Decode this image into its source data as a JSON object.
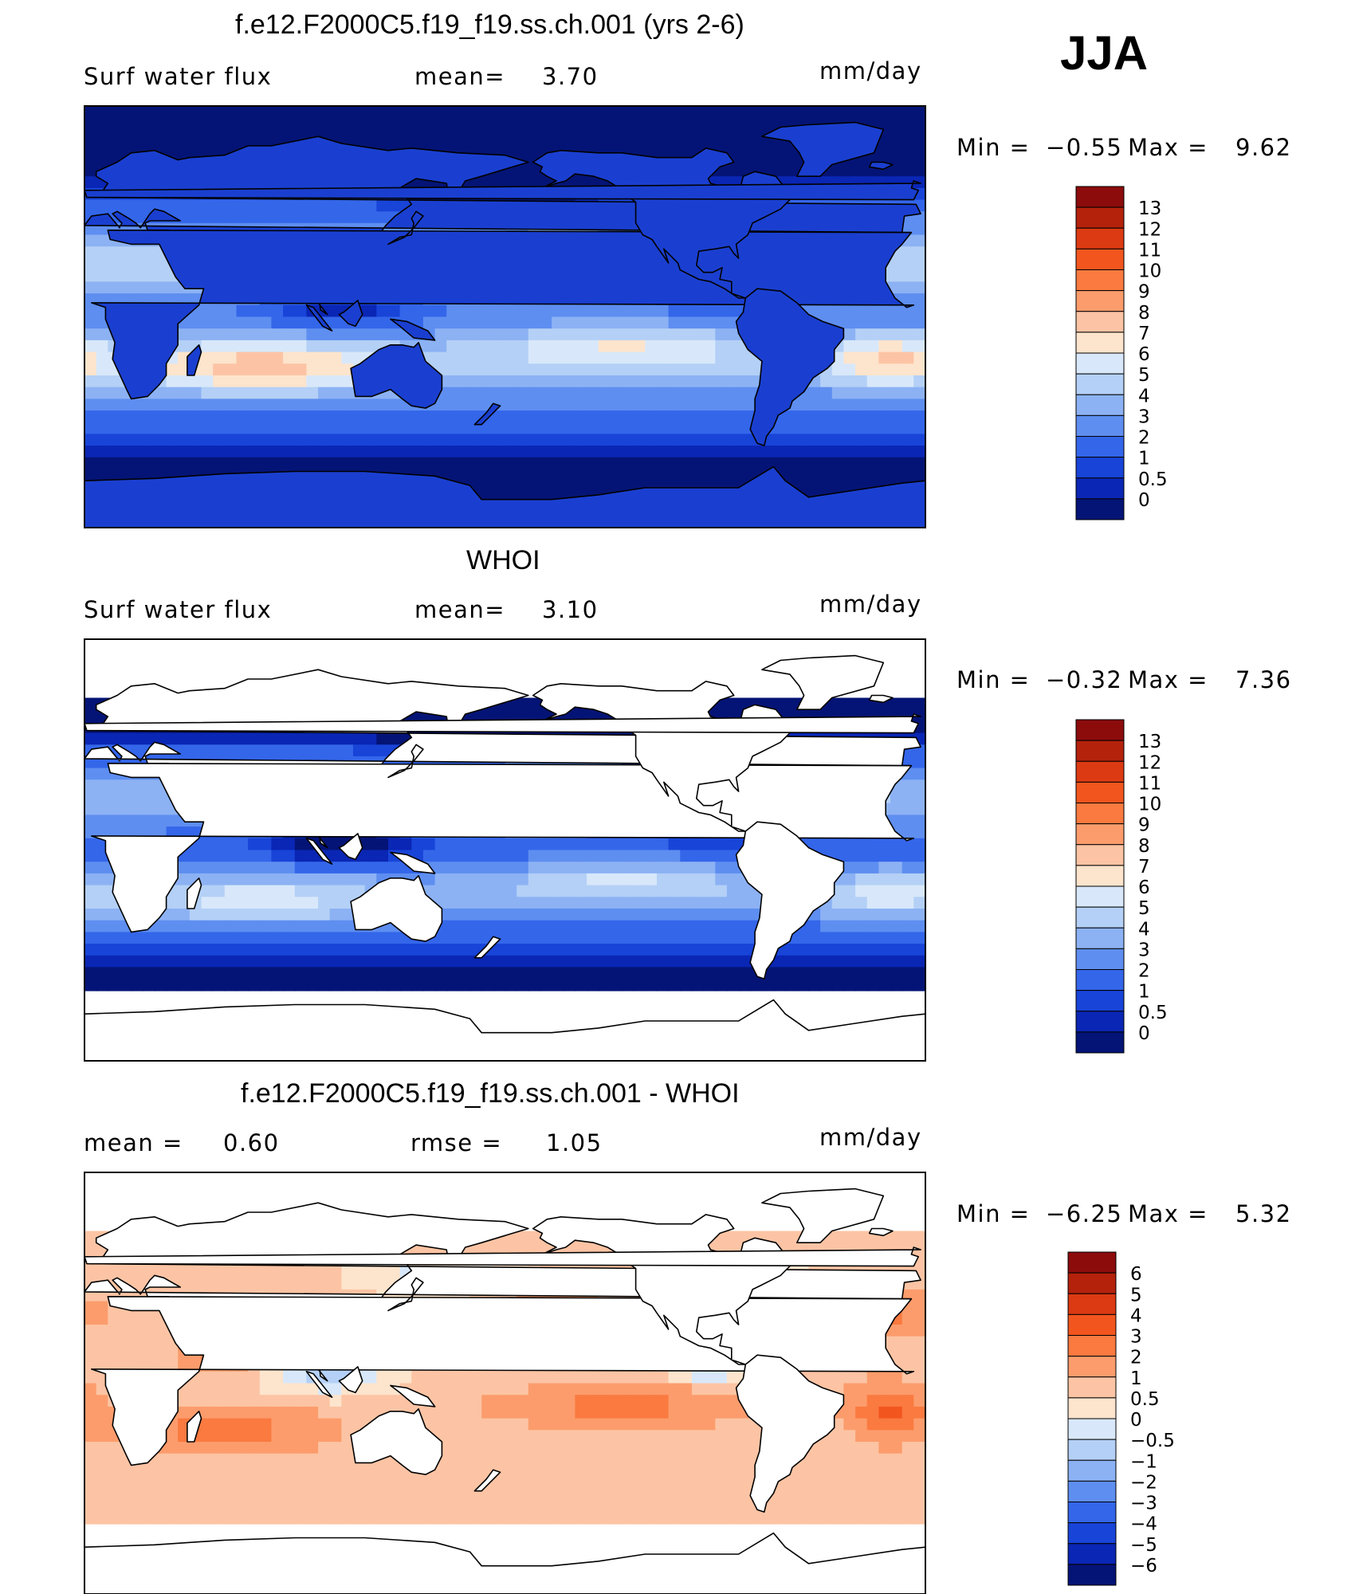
{
  "season": "JJA",
  "units": "mm/day",
  "chart_data": [
    {
      "type": "heatmap",
      "title": "f.e12.F2000C5.f19_f19.ss.ch.001 (yrs 2-6)",
      "left_label": "Surf water flux",
      "stat1_label": "mean=",
      "stat1_value": "3.70",
      "min_label": "Min =",
      "min_value": "−0.55",
      "max_label": "Max =",
      "max_value": "9.62",
      "colorbar_levels": [
        "13",
        "12",
        "11",
        "10",
        "9",
        "8",
        "7",
        "6",
        "5",
        "4",
        "3",
        "2",
        "1",
        "0.5",
        "0"
      ],
      "colorbar_colors": [
        "#8c0c0c",
        "#b4220c",
        "#dc3a12",
        "#f2561e",
        "#fa7a40",
        "#fc9c6c",
        "#fcc4a4",
        "#fde4cc",
        "#d8e8fa",
        "#b4d0f6",
        "#8cb2f4",
        "#5e8ef0",
        "#3466ea",
        "#1844d8",
        "#0a26b4",
        "#041476"
      ],
      "field": "model"
    },
    {
      "type": "heatmap",
      "title": "WHOI",
      "left_label": "Surf water flux",
      "stat1_label": "mean=",
      "stat1_value": "3.10",
      "min_label": "Min =",
      "min_value": "−0.32",
      "max_label": "Max =",
      "max_value": "7.36",
      "colorbar_levels": [
        "13",
        "12",
        "11",
        "10",
        "9",
        "8",
        "7",
        "6",
        "5",
        "4",
        "3",
        "2",
        "1",
        "0.5",
        "0"
      ],
      "colorbar_colors": [
        "#8c0c0c",
        "#b4220c",
        "#dc3a12",
        "#f2561e",
        "#fa7a40",
        "#fc9c6c",
        "#fcc4a4",
        "#fde4cc",
        "#d8e8fa",
        "#b4d0f6",
        "#8cb2f4",
        "#5e8ef0",
        "#3466ea",
        "#1844d8",
        "#0a26b4",
        "#041476"
      ],
      "field": "obs"
    },
    {
      "type": "heatmap",
      "title": "f.e12.F2000C5.f19_f19.ss.ch.001 - WHOI",
      "left_label": "mean =",
      "left_value": "0.60",
      "stat1_label": "rmse =",
      "stat1_value": "1.05",
      "min_label": "Min =",
      "min_value": "−6.25",
      "max_label": "Max =",
      "max_value": "5.32",
      "colorbar_levels": [
        "6",
        "5",
        "4",
        "3",
        "2",
        "1",
        "0.5",
        "0",
        "−0.5",
        "−1",
        "−2",
        "−3",
        "−4",
        "−5",
        "−6"
      ],
      "colorbar_colors": [
        "#8c0c0c",
        "#b4220c",
        "#dc3a12",
        "#f2561e",
        "#fa7a40",
        "#fc9c6c",
        "#fcc4a4",
        "#fde4cc",
        "#d8e8fa",
        "#b4d0f6",
        "#8cb2f4",
        "#5e8ef0",
        "#3466ea",
        "#1844d8",
        "#0a26b4",
        "#041476"
      ],
      "field": "diff"
    }
  ]
}
